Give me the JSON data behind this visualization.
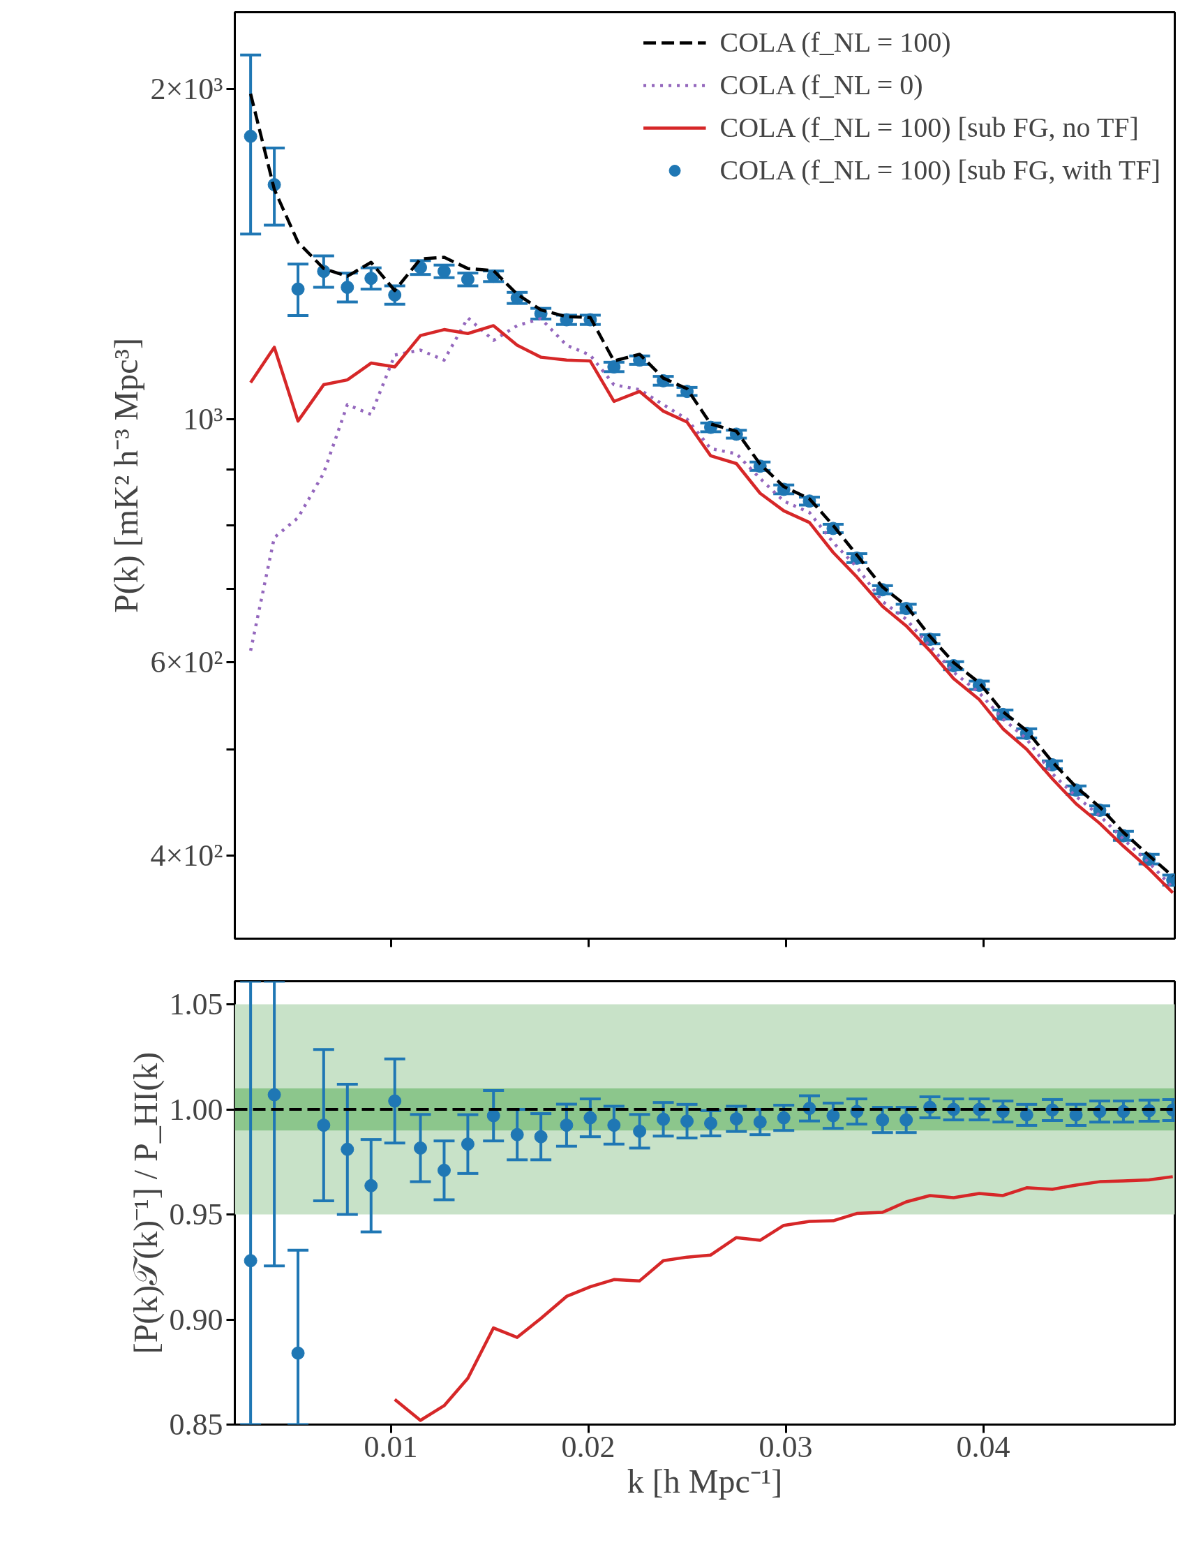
{
  "chart_data": [
    {
      "type": "line",
      "ylabel": "P(k) [mK² h⁻³ Mpc³]",
      "log": "y",
      "x": [
        0.0029,
        0.0041,
        0.0053,
        0.0066,
        0.0078,
        0.009,
        0.0102,
        0.0115,
        0.0127,
        0.0139,
        0.0152,
        0.0164,
        0.0176,
        0.0189,
        0.0201,
        0.0213,
        0.0226,
        0.0238,
        0.025,
        0.0262,
        0.0275,
        0.0287,
        0.0299,
        0.0312,
        0.0324,
        0.0336,
        0.0349,
        0.0361,
        0.0373,
        0.0385,
        0.0398,
        0.041,
        0.0422,
        0.0435,
        0.0447,
        0.0459,
        0.0471,
        0.0484,
        0.0496
      ],
      "xlim": [
        0.0021,
        0.0497
      ],
      "xticks": [
        {
          "value": 0.01,
          "label": null
        },
        {
          "value": 0.02,
          "label": null
        },
        {
          "value": 0.03,
          "label": null
        },
        {
          "value": 0.04,
          "label": null
        }
      ],
      "ylim": [
        336,
        2350
      ],
      "yticks": [
        {
          "value": 400,
          "label": "4×10²"
        },
        {
          "value": 500,
          "label": null
        },
        {
          "value": 600,
          "label": "6×10²"
        },
        {
          "value": 700,
          "label": null
        },
        {
          "value": 800,
          "label": null
        },
        {
          "value": 900,
          "label": null
        },
        {
          "value": 1000,
          "label": "10³"
        },
        {
          "value": 2000,
          "label": "2×10³"
        }
      ],
      "tick_labels": "y",
      "legend": "top right",
      "grid": false,
      "series": [
        {
          "name": "COLA (f_NL = 100)",
          "type": "line",
          "color": "#000000",
          "line_style": "dashed",
          "values": [
            1980,
            1620,
            1450,
            1372,
            1350,
            1390,
            1310,
            1400,
            1405,
            1372,
            1366,
            1300,
            1258,
            1240,
            1238,
            1130,
            1146,
            1090,
            1066,
            990,
            975,
            910,
            868,
            846,
            800,
            752,
            703,
            676,
            634,
            600,
            575,
            541,
            520,
            487,
            462,
            443,
            420,
            400,
            383
          ]
        },
        {
          "name": "COLA (f_NL = 0)",
          "type": "line",
          "color": "#9467bd",
          "line_style": "dotted",
          "values": [
            615,
            780,
            813,
            893,
            1031,
            1010,
            1144,
            1156,
            1132,
            1237,
            1180,
            1217,
            1235,
            1168,
            1144,
            1075,
            1064,
            1031,
            1000,
            940,
            930,
            883,
            842,
            822,
            772,
            733,
            682,
            657,
            621,
            588,
            563,
            533,
            511,
            475,
            453,
            435,
            414,
            394,
            374
          ]
        },
        {
          "name": "COLA (f_NL = 100) [sub FG, no TF]",
          "type": "line",
          "color": "#d62728",
          "line_style": "solid",
          "values": [
            1080,
            1163,
            996,
            1075,
            1086,
            1125,
            1116,
            1192,
            1207,
            1197,
            1217,
            1168,
            1139,
            1132,
            1130,
            1038,
            1060,
            1017,
            994,
            926,
            911,
            856,
            825,
            805,
            756,
            718,
            675,
            648,
            615,
            580,
            555,
            522,
            500,
            470,
            446,
            428,
            408,
            389,
            370
          ]
        },
        {
          "name": "COLA (f_NL = 100) [sub FG, with TF]",
          "type": "scatter",
          "color": "#1f77b4",
          "marker": "circle",
          "values": [
            1811,
            1636,
            1314,
            1364,
            1319,
            1344,
            1298,
            1375,
            1364,
            1341,
            1350,
            1290,
            1248,
            1232,
            1232,
            1116,
            1132,
            1084,
            1060,
            983,
            969,
            906,
            863,
            842,
            795,
            747,
            699,
            672,
            630,
            596,
            572,
            538,
            517,
            484,
            459,
            440,
            417,
            397,
            380
          ],
          "errors": [
            [
              1475,
              2148
            ],
            [
              1503,
              1767
            ],
            [
              1243,
              1385
            ],
            45,
            40,
            30,
            25,
            20,
            18,
            18,
            15,
            15,
            14,
            12,
            12,
            11,
            10,
            10,
            9,
            9,
            8,
            8,
            8,
            7,
            7,
            7,
            6,
            6,
            6,
            5,
            5,
            5,
            5,
            4,
            4,
            4,
            4,
            4,
            4
          ]
        }
      ]
    },
    {
      "type": "line",
      "xlabel": "k [h Mpc⁻¹]",
      "ylabel": "[P(k)𝒯(k)⁻¹] / P_HI(k)",
      "x": [
        0.0029,
        0.0041,
        0.0053,
        0.0066,
        0.0078,
        0.009,
        0.0102,
        0.0115,
        0.0127,
        0.0139,
        0.0152,
        0.0164,
        0.0176,
        0.0189,
        0.0201,
        0.0213,
        0.0226,
        0.0238,
        0.025,
        0.0262,
        0.0275,
        0.0287,
        0.0299,
        0.0312,
        0.0324,
        0.0336,
        0.0349,
        0.0361,
        0.0373,
        0.0385,
        0.0398,
        0.041,
        0.0422,
        0.0435,
        0.0447,
        0.0459,
        0.0471,
        0.0484,
        0.0496
      ],
      "xlim": [
        0.0021,
        0.0497
      ],
      "xticks": [
        0.01,
        0.02,
        0.03,
        0.04
      ],
      "ylim": [
        0.85,
        1.061
      ],
      "yticks": [
        0.85,
        {
          "value": 0.9,
          "label": "0.90"
        },
        0.95,
        {
          "value": 1.0,
          "label": "1.00"
        },
        1.05
      ],
      "grid": false,
      "bands": [
        {
          "axis": "y",
          "from": 0.95,
          "to": 1.05,
          "color": "#c8e2c8"
        },
        {
          "axis": "y",
          "from": 0.99,
          "to": 1.01,
          "color": "#8cc68c"
        }
      ],
      "ref_lines": [
        {
          "axis": "y",
          "value": 1.0,
          "color": "#000000",
          "line_style": "dashed"
        }
      ],
      "series": [
        {
          "type": "line",
          "color": "#d62728",
          "line_style": "solid",
          "values": [
            null,
            null,
            null,
            null,
            null,
            null,
            0.862,
            0.852,
            0.859,
            0.872,
            0.896,
            0.8915,
            0.9005,
            0.911,
            0.9156,
            0.919,
            0.9184,
            0.928,
            0.9297,
            0.9307,
            0.939,
            0.9377,
            0.9448,
            0.9467,
            0.947,
            0.9505,
            0.951,
            0.956,
            0.959,
            0.958,
            0.96,
            0.959,
            0.9627,
            0.962,
            0.964,
            0.9656,
            0.966,
            0.9665,
            0.968
          ]
        },
        {
          "type": "scatter",
          "color": "#1f77b4",
          "marker": "circle",
          "values": [
            0.928,
            1.007,
            0.884,
            0.9925,
            0.981,
            0.9637,
            1.004,
            0.9816,
            0.971,
            0.9835,
            0.997,
            0.988,
            0.987,
            0.9925,
            0.996,
            0.9925,
            0.9896,
            0.9953,
            0.9944,
            0.9934,
            0.9955,
            0.994,
            0.996,
            1.0005,
            0.997,
            0.999,
            0.995,
            0.995,
            1.001,
            1.0,
            1.0,
            0.999,
            0.9974,
            0.9997,
            0.9974,
            0.999,
            0.999,
            0.9994,
            0.9997
          ],
          "errors": [
            [
              0.85,
              1.061
            ],
            [
              0.9255,
              1.061
            ],
            [
              0.85,
              0.933
            ],
            0.036,
            0.031,
            0.022,
            0.02,
            0.016,
            0.014,
            0.014,
            0.012,
            0.012,
            0.011,
            0.01,
            0.009,
            0.009,
            0.008,
            0.008,
            0.008,
            0.006,
            0.006,
            0.006,
            0.006,
            0.006,
            0.006,
            0.006,
            0.006,
            0.006,
            0.005,
            0.005,
            0.005,
            0.005,
            0.005,
            0.005,
            0.005,
            0.005,
            0.005,
            0.005,
            0.005
          ]
        }
      ]
    }
  ]
}
